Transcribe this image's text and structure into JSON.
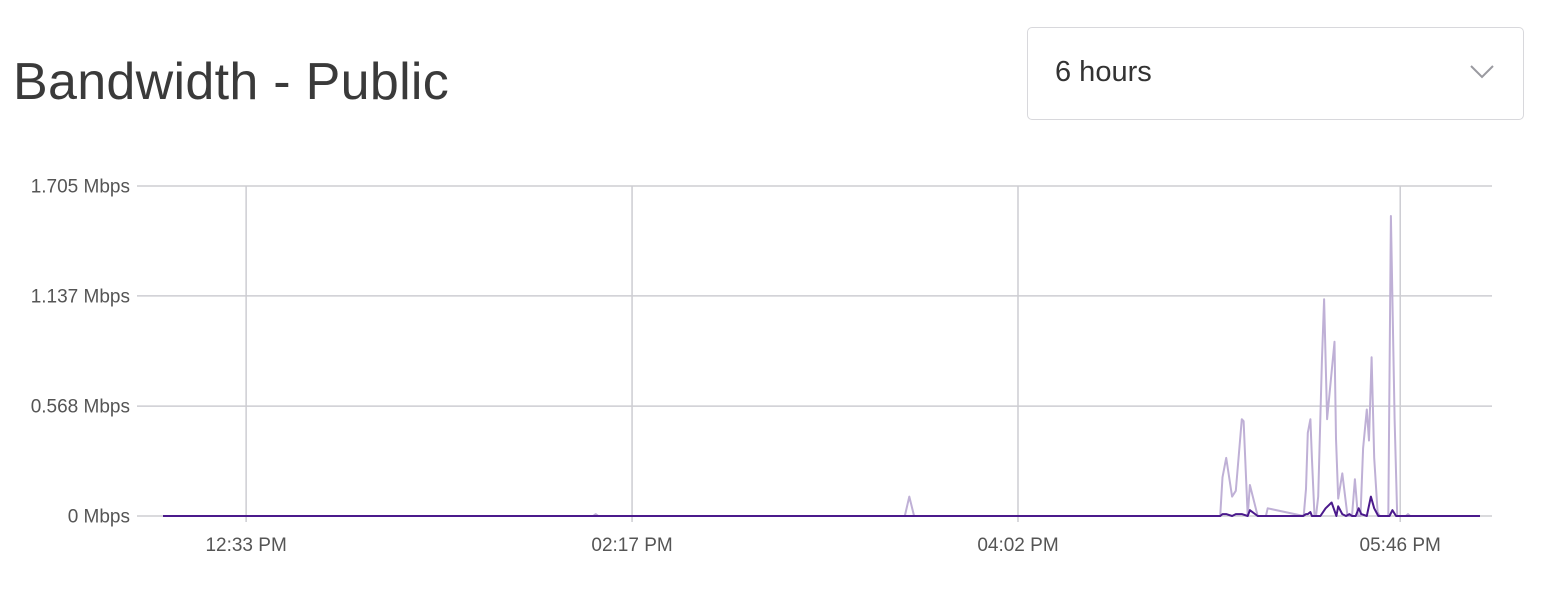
{
  "header": {
    "title": "Bandwidth - Public"
  },
  "range_select": {
    "value": "6 hours",
    "icon": "chevron-down-icon"
  },
  "colors": {
    "inbound": "#bfb0d6",
    "outbound": "#4b1a8c",
    "grid": "#cdcdd2"
  },
  "chart_data": {
    "type": "line",
    "title": "Bandwidth - Public",
    "xlabel": "",
    "ylabel": "",
    "y_unit": "Mbps",
    "ylim": [
      0,
      1.705
    ],
    "yticks": [
      0,
      0.568,
      1.137,
      1.705
    ],
    "ytick_labels": [
      "0 Mbps",
      "0.568 Mbps",
      "1.137 Mbps",
      "1.705 Mbps"
    ],
    "x_unit": "minutes",
    "xlim": [
      11.6,
      366.5
    ],
    "xticks": [
      34,
      138,
      242,
      345
    ],
    "xtick_labels": [
      "12:33 PM",
      "02:17 PM",
      "04:02 PM",
      "05:46 PM"
    ],
    "grid": true,
    "series": [
      {
        "x": [
          11.6,
          127.5,
          128.2,
          128.9,
          211.5,
          212.7,
          214,
          296.5,
          297.1,
          298.1,
          299.7,
          300.7,
          302.3,
          302.8,
          303.9,
          304.5,
          306.6,
          307.1,
          308.2,
          308.8,
          309.3,
          319,
          319.6,
          320.1,
          320.8,
          321.2,
          321.9,
          322.3,
          322.9,
          323.9,
          324.5,
          325.3,
          327.3,
          327.7,
          328.3,
          329.4,
          330.8,
          331.4,
          332,
          332.8,
          333.6,
          334.3,
          335,
          336,
          336.6,
          337.3,
          338,
          338.9,
          339.5,
          340.2,
          341.2,
          341.8,
          342.5,
          343.5,
          344.2,
          345,
          346.5,
          347.1,
          347.7,
          366.5
        ],
        "y": [
          0,
          0,
          0.01,
          0,
          0,
          0.1,
          0,
          0,
          0.2,
          0.3,
          0.1,
          0.13,
          0.5,
          0.49,
          0,
          0.16,
          0,
          0,
          0,
          0,
          0.04,
          0,
          0.14,
          0.43,
          0.5,
          0.3,
          0,
          0,
          0.1,
          0.8,
          1.12,
          0.5,
          0.9,
          0.4,
          0.09,
          0.22,
          0,
          0,
          0,
          0.19,
          0,
          0,
          0.35,
          0.55,
          0.39,
          0.82,
          0.3,
          0.02,
          0,
          0,
          0,
          0,
          1.55,
          0.5,
          0,
          0,
          0,
          0.01,
          0,
          0
        ]
      },
      {
        "x": [
          11.6,
          296.5,
          297.1,
          298.1,
          299.7,
          300.7,
          302.3,
          303.9,
          304.5,
          306.6,
          318.8,
          319.6,
          320.1,
          320.8,
          321.2,
          322.3,
          323.5,
          324.9,
          326.5,
          327.8,
          328.3,
          329.4,
          330.4,
          331.3,
          332,
          333,
          333.8,
          334.5,
          336,
          337.1,
          338,
          339.1,
          342.1,
          342.9,
          343.9,
          366.5
        ],
        "y": [
          0,
          0,
          0.01,
          0.01,
          0,
          0.01,
          0.01,
          0,
          0.03,
          0,
          0,
          0.01,
          0.01,
          0.02,
          0,
          0,
          0,
          0.04,
          0.07,
          0,
          0.05,
          0.01,
          0,
          0.01,
          0,
          0,
          0.04,
          0.01,
          0,
          0.1,
          0.04,
          0,
          0,
          0.03,
          0,
          0
        ]
      }
    ]
  }
}
